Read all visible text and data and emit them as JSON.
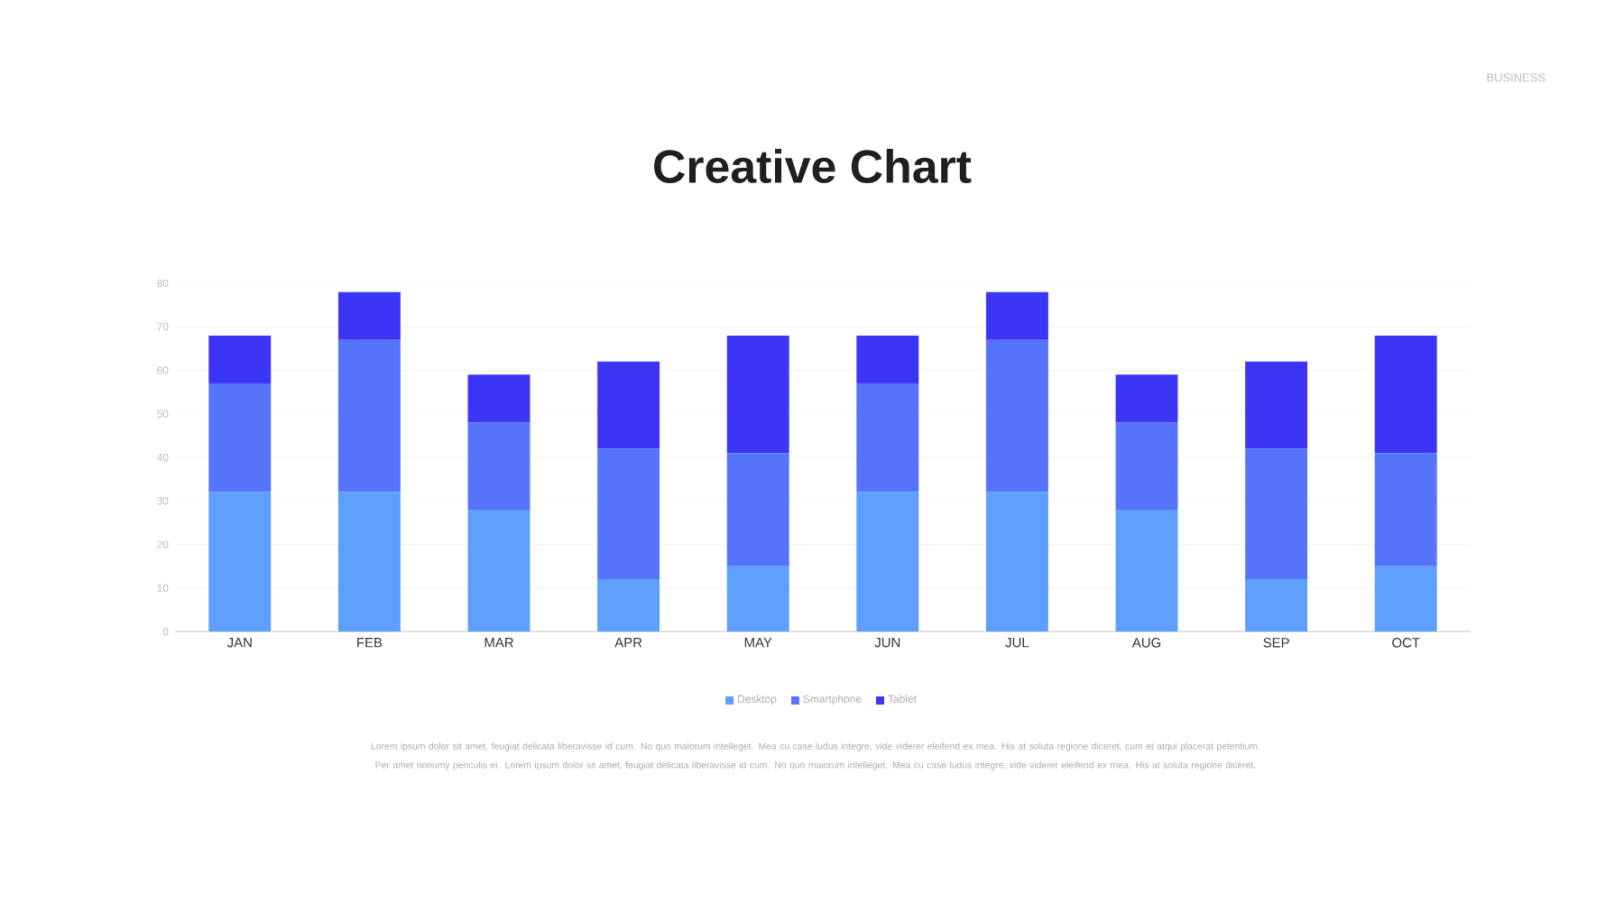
{
  "chart_data": {
    "type": "bar",
    "title": "Creative Chart",
    "stacked": true,
    "categories": [
      "JAN",
      "FEB",
      "MAR",
      "APR",
      "MAY",
      "JUN",
      "JUL",
      "AUG",
      "SEP",
      "OCT"
    ],
    "series": [
      {
        "name": "Desktop",
        "color": "#5e9efc",
        "values": [
          32,
          32,
          28,
          12,
          15,
          32,
          32,
          28,
          12,
          15
        ]
      },
      {
        "name": "Smartphone",
        "color": "#5574fb",
        "values": [
          25,
          35,
          20,
          30,
          26,
          25,
          35,
          20,
          30,
          26
        ]
      },
      {
        "name": "Tablet",
        "color": "#3d35f5",
        "values": [
          11,
          11,
          11,
          20,
          27,
          11,
          11,
          11,
          20,
          27
        ]
      }
    ],
    "ylim": [
      0,
      80
    ],
    "yticks": [
      0,
      10,
      20,
      30,
      40,
      50,
      60,
      70,
      80
    ],
    "grid": "y",
    "legend": "bottom",
    "annotations": [
      "BUSINESS",
      "Lorem ipsum dolor sit amet, feugiat delicata liberavisse id cum. No quo maiorum intelleget. Mea cu case ludus integre, vide viderer eleifend ex mea. His at soluta regione diceret, cum et atqui placerat petentium. Per amet nonumy periculis ei. Lorem ipsum dolor sit amet, feugiat delicata liberavisse id cum. No quo maiorum intelleget. Mea cu case ludus integre, vide viderer eleifend ex mea. His at soluta regione diceret."
    ]
  }
}
